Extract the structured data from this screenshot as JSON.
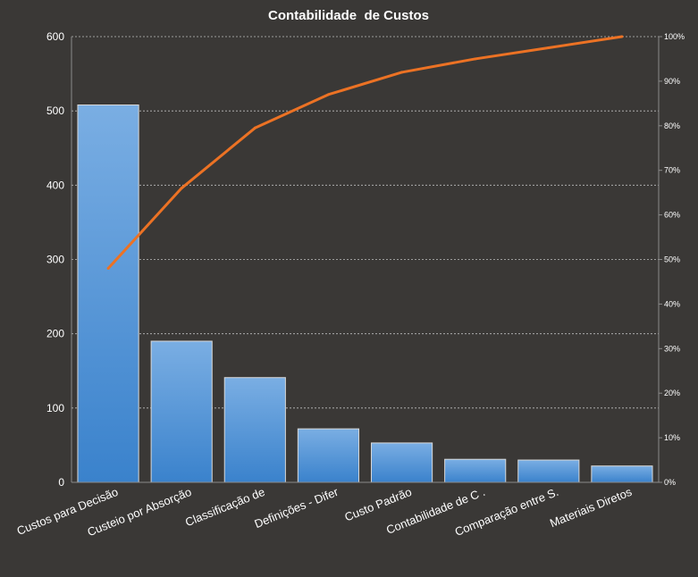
{
  "chart_data": {
    "type": "bar",
    "title": "Contabilidade  de Custos",
    "categories": [
      "Custos para Decisão",
      "Custeio por Absorção",
      "Classificação de",
      "Definições - Difer",
      "Custo Padrão",
      "Contabilidade de C .",
      "Comparação entre S.",
      "Materiais Diretos"
    ],
    "series": [
      {
        "type": "bar",
        "values": [
          508,
          190,
          141,
          72,
          53,
          31,
          30,
          22
        ]
      },
      {
        "type": "line",
        "axis": "secondary",
        "values": [
          48,
          66,
          79.5,
          87,
          92,
          95,
          97.5,
          100
        ]
      }
    ],
    "ylim": [
      0,
      600
    ],
    "yticks": [
      "0",
      "100",
      "200",
      "300",
      "400",
      "500",
      "600"
    ],
    "y2lim": [
      0,
      100
    ],
    "y2ticks": [
      "0%",
      "10%",
      "20%",
      "30%",
      "40%",
      "50%",
      "60%",
      "70%",
      "80%",
      "90%",
      "100%"
    ],
    "grid": true,
    "legend": "none",
    "colors": {
      "background": "#3a3836",
      "bar_top": "#7aaee3",
      "bar_bottom": "#3a82cc",
      "bar_stroke": "#d8d8d8",
      "line": "#ec7224",
      "text": "#ffffff",
      "grid": "#bdbdbd"
    }
  }
}
